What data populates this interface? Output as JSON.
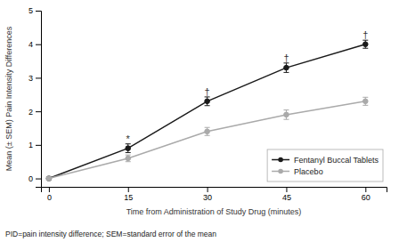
{
  "chart_data": {
    "type": "line",
    "x": [
      0,
      15,
      30,
      45,
      60
    ],
    "series": [
      {
        "name": "Fentanyl Buccal Tablets",
        "color": "#1a1a1a",
        "marker": "circle",
        "line_style": "solid",
        "values": [
          0.0,
          0.9,
          2.3,
          3.3,
          4.0
        ],
        "errors": [
          0.04,
          0.13,
          0.13,
          0.14,
          0.12
        ]
      },
      {
        "name": "Placebo",
        "color": "#aaaaaa",
        "marker": "circle",
        "line_style": "solid",
        "values": [
          0.0,
          0.6,
          1.4,
          1.9,
          2.3
        ],
        "errors": [
          0.04,
          0.1,
          0.12,
          0.14,
          0.12
        ]
      }
    ],
    "xlabel": "Time from Administration of Study Drug (minutes)",
    "ylabel": "Mean (± SEM) Pain Intensity Differences",
    "xlim": [
      -1.5,
      64
    ],
    "ylim": [
      -0.25,
      5.0
    ],
    "xticks": [
      0,
      15,
      30,
      45,
      60
    ],
    "yticks": [
      0,
      1,
      2,
      3,
      4,
      5
    ],
    "annotations": [
      {
        "text": "*",
        "x": 15,
        "y": 1.07
      },
      {
        "text": "†",
        "x": 30,
        "y": 2.47
      },
      {
        "text": "†",
        "x": 45,
        "y": 3.5
      },
      {
        "text": "†",
        "x": 60,
        "y": 4.17
      }
    ],
    "footnote": "PID=pain intensity difference; SEM=standard error of the mean",
    "legend": "lower right",
    "grid": false
  }
}
